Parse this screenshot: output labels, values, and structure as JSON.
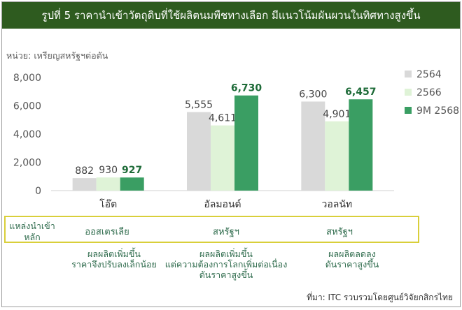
{
  "header": {
    "title": "รูปที่ 5 ราคานำเข้าวัตถุดิบที่ใช้ผลิตนมพืชทางเลือก มีแนวโน้มผันผวนในทิศทางสูงขึ้น"
  },
  "unit_label": "หน่วย: เหรียญสหรัฐฯต่อตัน",
  "colors": {
    "title_bg": "#2e5b1f",
    "s2564": "#d9d9d9",
    "s2566": "#dff3d7",
    "s9m2568": "#3a9e63",
    "strong_label": "#1e6b38",
    "source_box_border": "#d9cf3a"
  },
  "chart_data": {
    "type": "bar",
    "categories": [
      "โอ๊ต",
      "อัลมอนด์",
      "วอลนัท"
    ],
    "series": [
      {
        "name": "2564",
        "values": [
          882,
          5555,
          6300
        ],
        "labels": [
          "882",
          "5,555",
          "6,300"
        ]
      },
      {
        "name": "2566",
        "values": [
          930,
          4611,
          4901
        ],
        "labels": [
          "930",
          "4,611",
          "4,901"
        ]
      },
      {
        "name": "9M 2568",
        "values": [
          927,
          6730,
          6457
        ],
        "labels": [
          "927",
          "6,730",
          "6,457"
        ]
      }
    ],
    "ylim": [
      0,
      8000
    ],
    "yticks": [
      0,
      2000,
      4000,
      6000,
      8000
    ],
    "ytick_labels": [
      "0",
      "2,000",
      "4,000",
      "6,000",
      "8,000"
    ],
    "legend_position": "right",
    "grid": false
  },
  "sources": {
    "title": "แหล่งนำเข้าหลัก",
    "items": [
      "ออสเตรเลีย",
      "สหรัฐฯ",
      "สหรัฐฯ"
    ]
  },
  "notes": [
    [
      "ผลผลิตเพิ่มขึ้น",
      "ราคาจึงปรับลงเล็กน้อย"
    ],
    [
      "ผลผลิตเพิ่มขึ้น",
      "แต่ความต้องการโลกเพิ่มต่อเนื่อง",
      "ดันราคาสูงขึ้น"
    ],
    [
      "ผลผลิตลดลง",
      "ดันราคาสูงขึ้น"
    ]
  ],
  "footer": {
    "source": "ที่มา: ITC รวบรวมโดยศูนย์วิจัยกสิกรไทย"
  }
}
